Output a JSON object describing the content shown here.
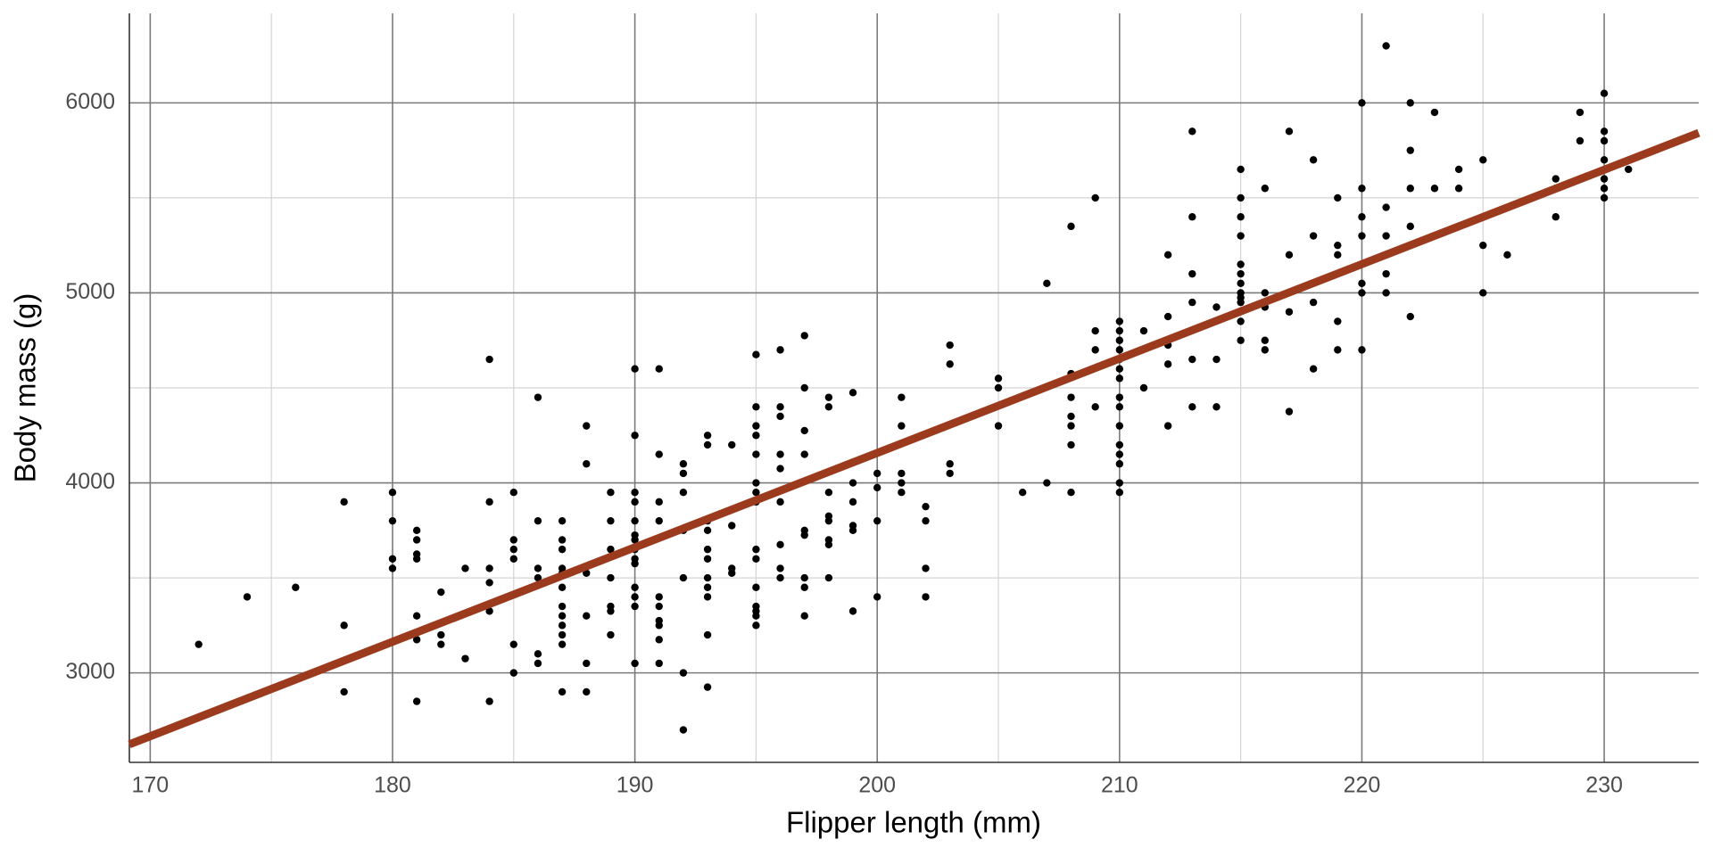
{
  "chart_data": {
    "type": "scatter",
    "x_label": "Flipper length (mm)",
    "y_label": "Body mass (g)",
    "color": "#000000",
    "x": [
      172,
      174,
      176,
      178,
      178,
      178,
      180,
      180,
      180,
      180,
      181,
      181,
      181,
      181,
      181,
      181,
      181,
      182,
      182,
      182,
      183,
      183,
      184,
      184,
      184,
      184,
      184,
      184,
      185,
      185,
      185,
      185,
      185,
      185,
      186,
      186,
      186,
      186,
      186,
      186,
      187,
      187,
      187,
      187,
      187,
      187,
      187,
      187,
      187,
      187,
      187,
      187,
      188,
      188,
      188,
      188,
      188,
      188,
      189,
      189,
      189,
      189,
      189,
      189,
      189,
      190,
      190,
      190,
      190,
      190,
      190,
      190,
      190,
      190,
      190,
      190,
      190,
      190,
      190,
      191,
      191,
      191,
      191,
      191,
      191,
      191,
      191,
      191,
      191,
      192,
      192,
      192,
      192,
      192,
      192,
      192,
      193,
      193,
      193,
      193,
      193,
      193,
      193,
      193,
      193,
      193,
      193,
      194,
      194,
      194,
      194,
      195,
      195,
      195,
      195,
      195,
      195,
      195,
      195,
      195,
      195,
      195,
      195,
      195,
      195,
      195,
      196,
      196,
      196,
      196,
      196,
      196,
      196,
      196,
      196,
      197,
      197,
      197,
      197,
      197,
      197,
      197,
      197,
      197,
      198,
      198,
      198,
      198,
      198,
      198,
      198,
      198,
      199,
      199,
      199,
      199,
      199,
      199,
      200,
      200,
      200,
      200,
      201,
      201,
      201,
      201,
      201,
      202,
      202,
      202,
      202,
      203,
      203,
      203,
      203,
      205,
      205,
      205,
      206,
      207,
      207,
      208,
      208,
      208,
      208,
      208,
      208,
      208,
      209,
      209,
      209,
      209,
      210,
      210,
      210,
      210,
      210,
      210,
      210,
      210,
      210,
      210,
      210,
      210,
      210,
      210,
      210,
      211,
      211,
      212,
      212,
      212,
      212,
      212,
      213,
      213,
      213,
      213,
      213,
      213,
      214,
      214,
      214,
      215,
      215,
      215,
      215,
      215,
      215,
      215,
      215,
      215,
      215,
      215,
      215,
      216,
      216,
      216,
      216,
      216,
      217,
      217,
      217,
      217,
      218,
      218,
      218,
      218,
      219,
      219,
      219,
      219,
      219,
      220,
      220,
      220,
      220,
      220,
      220,
      220,
      221,
      221,
      221,
      221,
      221,
      222,
      222,
      222,
      222,
      222,
      223,
      223,
      224,
      224,
      224,
      225,
      225,
      225,
      226,
      228,
      228,
      228,
      229,
      229,
      230,
      230,
      230,
      230,
      230,
      230,
      230,
      231
    ],
    "values": [
      3150,
      3400,
      3450,
      3900,
      3250,
      2900,
      3950,
      3800,
      3600,
      3550,
      3750,
      3700,
      3625,
      3600,
      3300,
      3175,
      2850,
      3425,
      3200,
      3150,
      3550,
      3075,
      4650,
      3900,
      3550,
      3475,
      3325,
      2850,
      3950,
      3700,
      3650,
      3600,
      3150,
      3000,
      4450,
      3800,
      3550,
      3500,
      3100,
      3050,
      3800,
      3700,
      3650,
      3550,
      3525,
      3450,
      3350,
      3300,
      3250,
      3200,
      3150,
      2900,
      4300,
      4100,
      3525,
      3300,
      3050,
      2900,
      3950,
      3800,
      3650,
      3500,
      3350,
      3325,
      3200,
      4600,
      4250,
      3950,
      3900,
      3800,
      3725,
      3700,
      3650,
      3600,
      3575,
      3450,
      3400,
      3350,
      3050,
      4600,
      4150,
      3900,
      3800,
      3400,
      3350,
      3275,
      3250,
      3175,
      3050,
      4100,
      4050,
      3950,
      3750,
      3500,
      3000,
      2700,
      4250,
      4200,
      3800,
      3750,
      3650,
      3600,
      3500,
      3450,
      3400,
      3200,
      2925,
      4200,
      3775,
      3550,
      3525,
      4675,
      4400,
      4300,
      4250,
      4150,
      4000,
      3950,
      3900,
      3650,
      3600,
      3450,
      3350,
      3325,
      3300,
      3250,
      4700,
      4400,
      4350,
      4150,
      4075,
      3900,
      3675,
      3550,
      3500,
      4775,
      4500,
      4275,
      4150,
      3750,
      3725,
      3500,
      3450,
      3300,
      4450,
      4400,
      3950,
      3825,
      3800,
      3700,
      3675,
      3500,
      4475,
      4000,
      3900,
      3775,
      3750,
      3325,
      4050,
      3975,
      3800,
      3400,
      4450,
      4300,
      4050,
      4000,
      3950,
      3875,
      3800,
      3550,
      3400,
      4725,
      4625,
      4100,
      4050,
      4550,
      4500,
      4300,
      3950,
      5050,
      4000,
      5350,
      4575,
      4450,
      4350,
      4300,
      4200,
      3950,
      5500,
      4800,
      4700,
      4400,
      4850,
      4800,
      4750,
      4700,
      4650,
      4600,
      4550,
      4450,
      4400,
      4300,
      4200,
      4150,
      4100,
      4000,
      3950,
      4800,
      4500,
      5200,
      4875,
      4725,
      4625,
      4300,
      5850,
      5400,
      5100,
      4950,
      4650,
      4400,
      4925,
      4650,
      4400,
      5650,
      5500,
      5400,
      5300,
      5150,
      5100,
      5050,
      5000,
      4975,
      4950,
      4850,
      4750,
      5550,
      5000,
      4925,
      4750,
      4700,
      5850,
      5200,
      4900,
      4375,
      5700,
      5300,
      4950,
      4600,
      5500,
      5250,
      5200,
      4850,
      4700,
      6000,
      5550,
      5400,
      5300,
      5050,
      5000,
      4700,
      6300,
      5450,
      5300,
      5100,
      5000,
      6000,
      5750,
      5550,
      5350,
      4875,
      5950,
      5550,
      5650,
      5550,
      5350,
      5700,
      5250,
      5000,
      5200,
      5600,
      5550,
      5400,
      5950,
      5800,
      6050,
      5850,
      5800,
      5700,
      5600,
      5550,
      5500,
      5650
    ],
    "fit": {
      "color": "#9b3a1d",
      "x": [
        169.14,
        233.9
      ],
      "values": [
        2624,
        5842
      ]
    },
    "xlim": [
      169.14,
      233.9
    ],
    "ylim": [
      2529,
      6471
    ],
    "xticks": [
      170,
      180,
      190,
      200,
      210,
      220,
      230
    ],
    "yticks": [
      3000,
      4000,
      5000,
      6000
    ],
    "grid": true
  }
}
